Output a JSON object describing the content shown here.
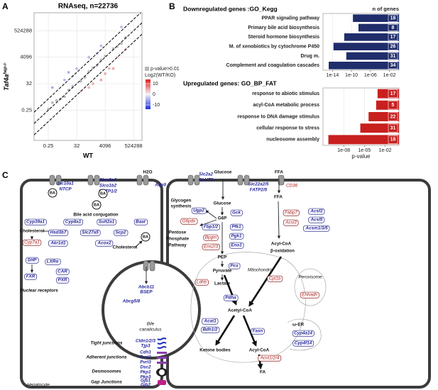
{
  "panel_labels": [
    "A",
    "B",
    "C"
  ],
  "chart_data": [
    {
      "type": "scatter",
      "title": "RNAseq, n=22736",
      "xlabel": "WT",
      "ylabel": "Taf4a",
      "ylabel_superscript": "hep-/-",
      "log_base": 2,
      "xlim": [
        0.022,
        2200000
      ],
      "ylim": [
        0.001,
        14000000
      ],
      "xticks": [
        0.25,
        32,
        4096,
        524288
      ],
      "yticks": [
        0.25,
        32,
        4096,
        524288
      ],
      "grid": true,
      "color_scale": {
        "range": [
          -14,
          14
        ],
        "low": "#1f2fe0",
        "mid": "#f4f4f4",
        "high": "#e01b1b",
        "ticks": [
          10,
          0,
          -10
        ]
      },
      "series": [
        {
          "name": "p-value>0.01",
          "color": "#b8b8b8",
          "x": [
            1,
            4,
            16,
            64,
            256,
            1024,
            4096,
            32768,
            131072,
            8,
            128,
            2048,
            512,
            16384,
            2,
            0.5,
            65536,
            0.25
          ],
          "y": [
            1.5,
            3,
            20,
            50,
            300,
            900,
            5000,
            30000,
            150000,
            10,
            100,
            2500,
            600,
            20000,
            2,
            1,
            50000,
            0.3
          ]
        },
        {
          "name": "Log2(WT/KO)",
          "x": [
            64,
            512,
            4096,
            32768,
            256,
            8192,
            131072,
            16384,
            2048,
            4,
            32,
            256,
            2048,
            16,
            1024,
            0.5,
            8,
            65536
          ],
          "y": [
            8,
            32,
            200,
            4096,
            16,
            512,
            16384,
            512,
            64,
            64,
            512,
            4096,
            32768,
            128,
            8192,
            16,
            256,
            1048576
          ],
          "values": [
            3,
            4,
            4.5,
            3,
            4,
            4,
            3,
            5,
            5,
            -4,
            -4,
            -4,
            -4,
            -3,
            -3,
            -5,
            -5,
            -4
          ]
        }
      ]
    },
    {
      "type": "bar",
      "orientation": "horizontal",
      "title": "Downregulated genes :GO_Kegg",
      "count_header": "n of genes",
      "categories": [
        "PPAR signaling pathway",
        "Primary bile acid biosynthesis",
        "Steroid hormone biosynthesis",
        "M. of xenobiotics by cytochrome P450",
        "Drug m.",
        "Complement and coagulation cascades"
      ],
      "values": [
        2e-10,
        3e-09,
        3e-12,
        1.6e-14,
        8e-12,
        1.6e-15
      ],
      "counts": [
        18,
        8,
        17,
        26,
        31,
        34
      ],
      "color": "#1f2d6b",
      "log_scale": true,
      "xlim": [
        1e-16,
        1
      ],
      "xticks": [
        {
          "value": 1e-14,
          "label": "1e-14"
        },
        {
          "value": 1e-10,
          "label": "1e-10"
        },
        {
          "value": 1e-06,
          "label": "1e-06"
        },
        {
          "value": 0.01,
          "label": "1e-02"
        }
      ]
    },
    {
      "type": "bar",
      "orientation": "horizontal",
      "title": "Upregulated genes: GO_BP_FAT",
      "xlabel": "p-value",
      "categories": [
        "response to abiotic stimulus",
        "acyl-CoA metabolic process",
        "response to DNA damage stimulus",
        "cellular response to stress",
        "nucleosome assembly"
      ],
      "values": [
        0.0008,
        0.0005,
        4e-05,
        2.5e-06,
        6e-11
      ],
      "counts": [
        17,
        5,
        22,
        31,
        18
      ],
      "color": "#c8201e",
      "log_scale": true,
      "xlim": [
        1e-11,
        1
      ],
      "xticks": [
        {
          "value": 1e-08,
          "label": "1e-08"
        },
        {
          "value": 1e-05,
          "label": "1e-05"
        },
        {
          "value": 0.01,
          "label": "1e-02"
        }
      ]
    }
  ],
  "diagram": {
    "blue_genes": [
      "Slc10a1",
      "NTCP",
      "Slco1a4",
      "Slco1b2",
      "OATP1/2",
      "Aqp9",
      "Slc2a2",
      "GLUT2",
      "Slc22a2/5",
      "FATP2/5",
      "Cyp39a1",
      "Cyp8a1",
      "Sult2a1",
      "Baat",
      "Hsd3b7",
      "Slc27a5",
      "Scp2",
      "Akr1d1",
      "Acox2",
      "SHP",
      "LXRα",
      "FXR",
      "CAR",
      "PXR",
      "Abcb11",
      "BSEP",
      "Abcg5/8",
      "Cldn1/2/3",
      "Tjp3",
      "Cdh1",
      "Pvrl2",
      "Pvrl3",
      "Dsc2",
      "Pkp1",
      "Pkp3",
      "Gjb1",
      "Gjb2",
      "Ugp2",
      "Gck",
      "Fbp1/2",
      "Pfk1",
      "Pgk1",
      "Eno1",
      "Pcx",
      "Pdha",
      "Acat1",
      "Bdh1/2",
      "Fasn",
      "Acsf2",
      "Acsl5",
      "Acsm1/3/5",
      "Cyp4a14",
      "Cyp4f14"
    ],
    "red_genes": [
      "CD36",
      "Cyp7a1",
      "G6pdx",
      "Bpgm",
      "Eno2/3",
      "Ldhb",
      "Fabp7",
      "Acsl3",
      "Cpt1b",
      "Ehhadh",
      "Acot1/2/4"
    ],
    "labels": [
      "H2O",
      "Glucose",
      "FFA",
      "Bile acid conjugation",
      "Cholesterol",
      "Cholesterol",
      "Nuclear receptors",
      "Bile",
      "canaliculus",
      "Tight junctions",
      "Adherent junctions",
      "Desmosomes",
      "Gap Junctions",
      "Hepatocyte",
      "Glycogen",
      "synthesis",
      "Glucose",
      "G6P",
      "Pentose",
      "Phosphate",
      "Pathway",
      "PEP",
      "Pyruvate",
      "Lactate",
      "Mitochondria",
      "Acetyl-CoA",
      "Ketone bodies",
      "Acyl-CoA",
      "FA",
      "FFA",
      "Acyl-CoA",
      "β-oxidation",
      "Peroxisome",
      "ω-ER",
      "BA",
      "BA",
      "BA",
      "BA"
    ]
  }
}
